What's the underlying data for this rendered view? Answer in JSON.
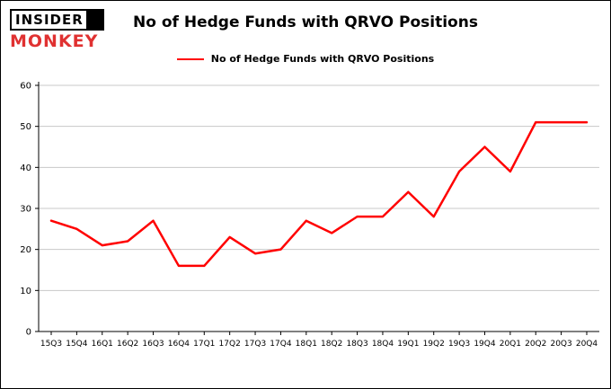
{
  "logo": {
    "line1": "INSIDER",
    "line2": "MONKEY"
  },
  "header": {
    "title": "No of Hedge Funds with QRVO Positions"
  },
  "legend": {
    "label": "No of Hedge Funds with QRVO Positions",
    "color": "#ff0000"
  },
  "chart_data": {
    "type": "line",
    "title": "No of Hedge Funds with QRVO Positions",
    "xlabel": "",
    "ylabel": "",
    "ylim": [
      0,
      60
    ],
    "yticks": [
      0,
      10,
      20,
      30,
      40,
      50,
      60
    ],
    "grid": true,
    "legend_position": "top",
    "categories": [
      "15Q3",
      "15Q4",
      "16Q1",
      "16Q2",
      "16Q3",
      "16Q4",
      "17Q1",
      "17Q2",
      "17Q3",
      "17Q4",
      "18Q1",
      "18Q2",
      "18Q3",
      "18Q4",
      "19Q1",
      "19Q2",
      "19Q3",
      "19Q4",
      "20Q1",
      "20Q2",
      "20Q3",
      "20Q4"
    ],
    "series": [
      {
        "name": "No of Hedge Funds with QRVO Positions",
        "color": "#ff0000",
        "values": [
          27,
          25,
          21,
          22,
          27,
          16,
          16,
          23,
          19,
          20,
          27,
          24,
          28,
          28,
          34,
          28,
          39,
          45,
          39,
          51,
          51,
          51
        ]
      }
    ]
  },
  "colors": {
    "line": "#ff0000",
    "grid": "#c8c8c8",
    "axis": "#000000",
    "monkey_red": "#e03131"
  }
}
